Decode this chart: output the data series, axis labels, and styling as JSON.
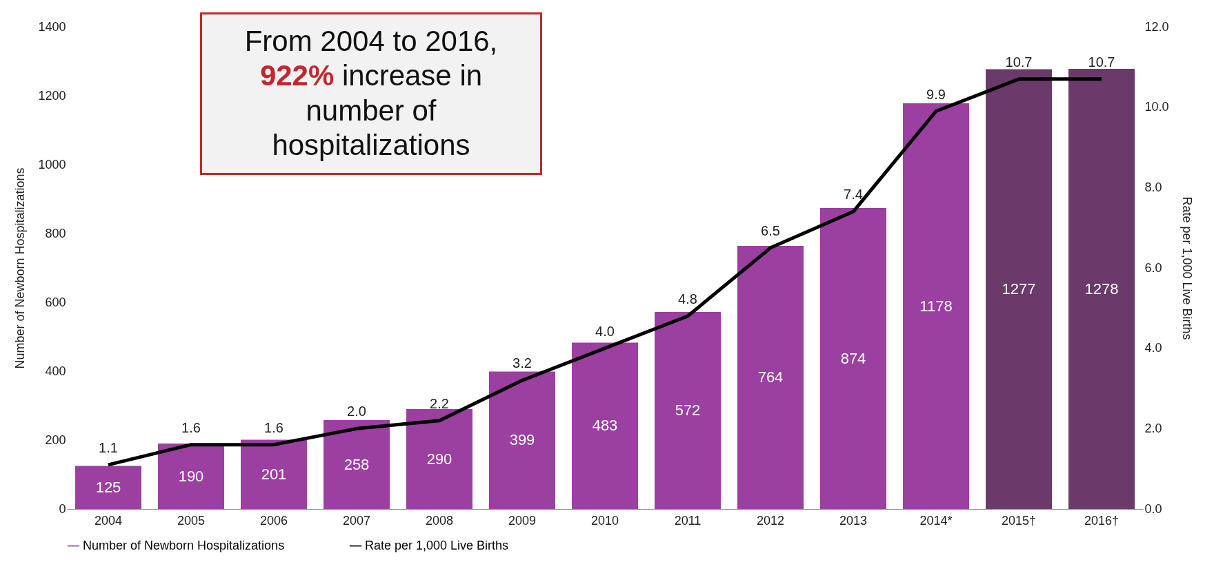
{
  "chart_data": {
    "type": "bar",
    "categories": [
      "2004",
      "2005",
      "2006",
      "2007",
      "2008",
      "2009",
      "2010",
      "2011",
      "2012",
      "2013",
      "2014*",
      "2015†",
      "2016†"
    ],
    "ylabel": "Number of Newborn Hospitalizations",
    "y2label": "Rate per 1,000 Live Births",
    "series": [
      {
        "name": "Number of Newborn Hospitalizations",
        "color": "#9b3fa0",
        "colors": [
          "#9b3fa0",
          "#9b3fa0",
          "#9b3fa0",
          "#9b3fa0",
          "#9b3fa0",
          "#9b3fa0",
          "#9b3fa0",
          "#9b3fa0",
          "#9b3fa0",
          "#9b3fa0",
          "#9b3fa0",
          "#6b3a6b",
          "#6b3a6b"
        ],
        "values": [
          125,
          190,
          201,
          258,
          290,
          399,
          483,
          572,
          764,
          874,
          1178,
          1277,
          1278
        ]
      },
      {
        "name": "Rate per 1,000 Live Births",
        "type": "line",
        "axis": "y2",
        "color": "#000000",
        "values": [
          1.1,
          1.6,
          1.6,
          2.0,
          2.2,
          3.2,
          4.0,
          4.8,
          6.5,
          7.4,
          9.9,
          10.7,
          10.7
        ],
        "value_labels": [
          "1.1",
          "1.6",
          "1.6",
          "2.0",
          "2.2",
          "3.2",
          "4.0",
          "4.8",
          "6.5",
          "7.4",
          "9.9",
          "10.7",
          "10.7"
        ]
      }
    ],
    "data_labels": true,
    "ylim": [
      0,
      1400
    ],
    "yticks": [
      0,
      200,
      400,
      600,
      800,
      1000,
      1200,
      1400
    ],
    "y2lim": [
      0,
      12
    ],
    "y2ticks": [
      {
        "value": 0,
        "label": "0.0"
      },
      {
        "value": 2,
        "label": "2.0"
      },
      {
        "value": 4,
        "label": "4.0"
      },
      {
        "value": 6,
        "label": "6.0"
      },
      {
        "value": 8,
        "label": "8.0"
      },
      {
        "value": 10,
        "label": "10.0"
      },
      {
        "value": 12,
        "label": "12.0"
      }
    ],
    "grid": false,
    "legend": "bottom",
    "annotations": [
      "From 2004 to 2016, 922% increase in number of hospitalizations"
    ]
  }
}
